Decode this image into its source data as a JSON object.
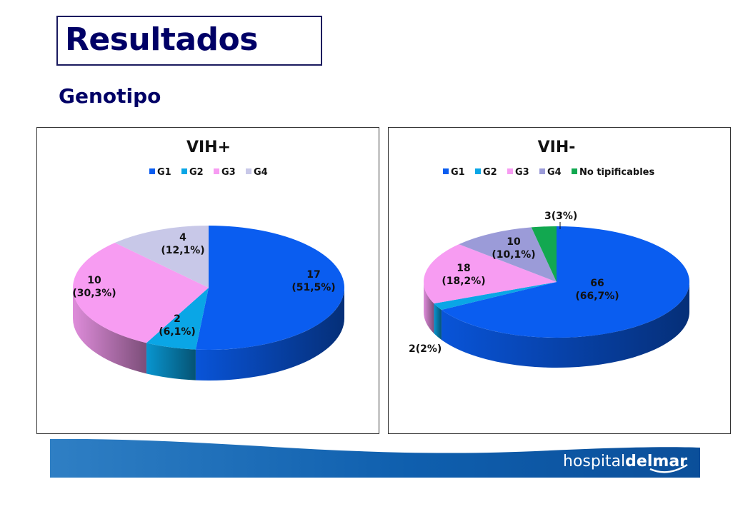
{
  "slide": {
    "title": "Resultados",
    "subtitle": "Genotipo"
  },
  "footer": {
    "logo_text_light": "hospital",
    "logo_text_bold": "del",
    "logo_text_mar": "mar"
  },
  "chart_data": [
    {
      "type": "pie",
      "title": "VIH+",
      "categories": [
        "G1",
        "G2",
        "G3",
        "G4"
      ],
      "values": [
        17,
        2,
        10,
        4
      ],
      "percent_labels": [
        "(51,5%)",
        "(6,1%)",
        "(30,3%)",
        "(12,1%)"
      ],
      "colors": [
        "#0a5df0",
        "#0aa6e6",
        "#f79cf2",
        "#c8c8e8"
      ],
      "legend_position": "top"
    },
    {
      "type": "pie",
      "title": "VIH-",
      "categories": [
        "G1",
        "G2",
        "G3",
        "G4",
        "No tipificables"
      ],
      "values": [
        66,
        2,
        18,
        10,
        3
      ],
      "percent_labels": [
        "(66,7%)",
        "(2%)",
        "(18,2%)",
        "(10,1%)",
        "(3%)"
      ],
      "colors": [
        "#0a5df0",
        "#0aa6e6",
        "#f79cf2",
        "#9b9bd8",
        "#12a850"
      ],
      "legend_position": "top"
    }
  ]
}
